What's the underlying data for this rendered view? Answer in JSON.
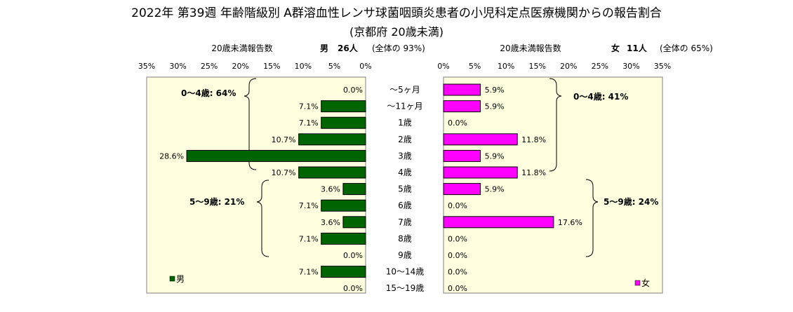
{
  "title": "2022年 第39週 年齢階級別 A群溶血性レンサ球菌咽頭炎患者の小児科定点医療機関からの報告割合",
  "subtitle": "(京都府 20歳未満)",
  "male_panel": {
    "axis_title": "20歳未満報告数",
    "header_label": "男",
    "header_count": "26人",
    "header_ratio": "(全体の 93%)",
    "legend": "男",
    "group1_label": "0～4歳: 64%",
    "group2_label": "5～9歳: 21%",
    "color": "#006400"
  },
  "female_panel": {
    "axis_title": "20歳未満報告数",
    "header_label": "女",
    "header_count": "11人",
    "header_ratio": "(全体の 65%)",
    "legend": "女",
    "group1_label": "0～4歳: 41%",
    "group2_label": "5～9歳: 24%",
    "color": "#ff00ff"
  },
  "chart_data": {
    "type": "bar",
    "orientation": "horizontal-butterfly",
    "title": "2022年 第39週 年齢階級別 A群溶血性レンサ球菌咽頭炎患者の小児科定点医療機関からの報告割合",
    "subtitle": "(京都府 20歳未満)",
    "categories": [
      "～5ヶ月",
      "～11ヶ月",
      "1歳",
      "2歳",
      "3歳",
      "4歳",
      "5歳",
      "6歳",
      "7歳",
      "8歳",
      "9歳",
      "10～14歳",
      "15～19歳"
    ],
    "xlim": [
      0,
      35
    ],
    "x_ticks": [
      "0%",
      "5%",
      "10%",
      "15%",
      "20%",
      "25%",
      "30%",
      "35%"
    ],
    "series": [
      {
        "name": "男",
        "color": "#006400",
        "values": [
          0.0,
          7.1,
          7.1,
          10.7,
          28.6,
          10.7,
          3.6,
          7.1,
          3.6,
          7.1,
          0.0,
          7.1,
          0.0
        ],
        "labels": [
          "0.0%",
          "7.1%",
          "7.1%",
          "10.7%",
          "28.6%",
          "10.7%",
          "3.6%",
          "7.1%",
          "3.6%",
          "7.1%",
          "0.0%",
          "7.1%",
          "0.0%"
        ]
      },
      {
        "name": "女",
        "color": "#ff00ff",
        "values": [
          5.9,
          5.9,
          0.0,
          11.8,
          5.9,
          11.8,
          5.9,
          0.0,
          17.6,
          0.0,
          0.0,
          0.0,
          0.0
        ],
        "labels": [
          "5.9%",
          "5.9%",
          "0.0%",
          "11.8%",
          "5.9%",
          "11.8%",
          "5.9%",
          "0.0%",
          "17.6%",
          "0.0%",
          "0.0%",
          "0.0%",
          "0.0%"
        ]
      }
    ],
    "grid": false,
    "legend_position": "bottom-inside"
  }
}
